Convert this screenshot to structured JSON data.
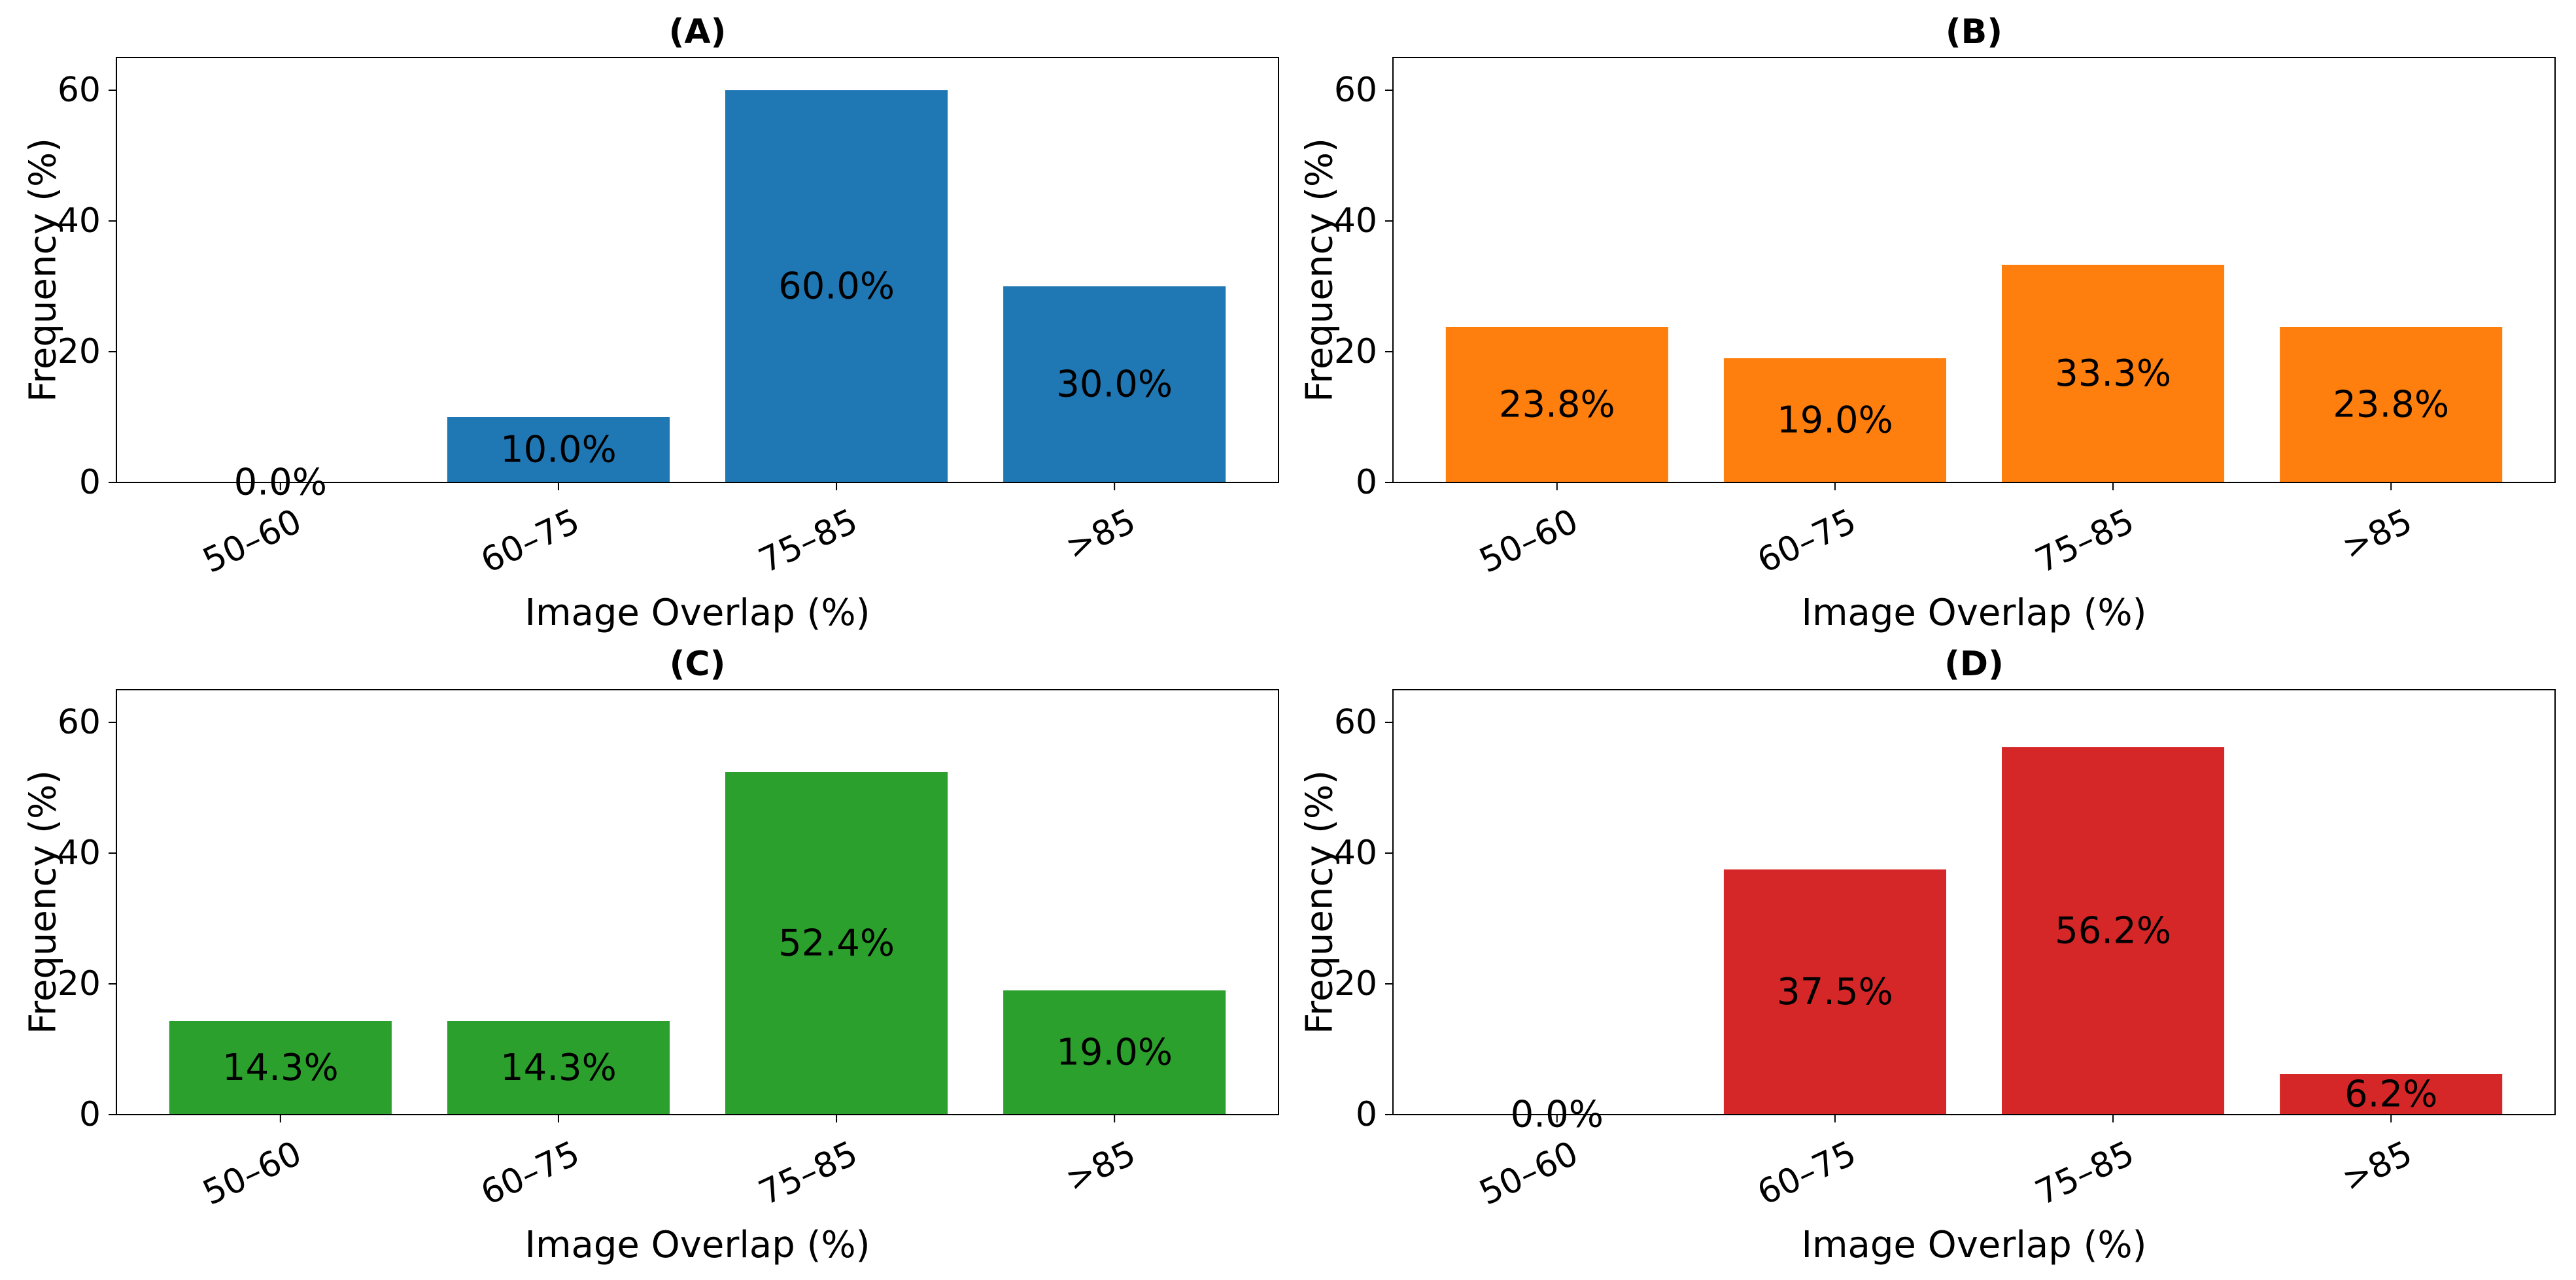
{
  "figure": {
    "panel_count": 4
  },
  "chart_data": [
    {
      "type": "bar",
      "title": "(A)",
      "color": "#1f77b4",
      "categories": [
        "50–60",
        "60–75",
        "75–85",
        ">85"
      ],
      "values": [
        0.0,
        10.0,
        60.0,
        30.0
      ],
      "value_labels": [
        "0.0%",
        "10.0%",
        "60.0%",
        "30.0%"
      ],
      "xlabel": "Image Overlap (%)",
      "ylabel": "Frequency (%)",
      "ylim": [
        0,
        65
      ],
      "yticks": [
        0,
        20,
        40,
        60
      ],
      "ytick_labels": [
        "0",
        "20",
        "40",
        "60"
      ],
      "grid": false
    },
    {
      "type": "bar",
      "title": "(B)",
      "color": "#ff7f0e",
      "categories": [
        "50–60",
        "60–75",
        "75–85",
        ">85"
      ],
      "values": [
        23.8,
        19.0,
        33.3,
        23.8
      ],
      "value_labels": [
        "23.8%",
        "19.0%",
        "33.3%",
        "23.8%"
      ],
      "xlabel": "Image Overlap (%)",
      "ylabel": "Frequency (%)",
      "ylim": [
        0,
        65
      ],
      "yticks": [
        0,
        20,
        40,
        60
      ],
      "ytick_labels": [
        "0",
        "20",
        "40",
        "60"
      ],
      "grid": false
    },
    {
      "type": "bar",
      "title": "(C)",
      "color": "#2ca02c",
      "categories": [
        "50–60",
        "60–75",
        "75–85",
        ">85"
      ],
      "values": [
        14.3,
        14.3,
        52.4,
        19.0
      ],
      "value_labels": [
        "14.3%",
        "14.3%",
        "52.4%",
        "19.0%"
      ],
      "xlabel": "Image Overlap (%)",
      "ylabel": "Frequency (%)",
      "ylim": [
        0,
        65
      ],
      "yticks": [
        0,
        20,
        40,
        60
      ],
      "ytick_labels": [
        "0",
        "20",
        "40",
        "60"
      ],
      "grid": false
    },
    {
      "type": "bar",
      "title": "(D)",
      "color": "#d62728",
      "categories": [
        "50–60",
        "60–75",
        "75–85",
        ">85"
      ],
      "values": [
        0.0,
        37.5,
        56.2,
        6.2
      ],
      "value_labels": [
        "0.0%",
        "37.5%",
        "56.2%",
        "6.2%"
      ],
      "xlabel": "Image Overlap (%)",
      "ylabel": "Frequency (%)",
      "ylim": [
        0,
        65
      ],
      "yticks": [
        0,
        20,
        40,
        60
      ],
      "ytick_labels": [
        "0",
        "20",
        "40",
        "60"
      ],
      "grid": false
    }
  ]
}
